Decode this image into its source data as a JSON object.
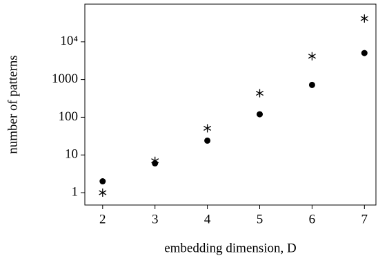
{
  "chart_data": {
    "type": "scatter",
    "xlabel": "embedding dimension, D",
    "ylabel": "number of patterns",
    "x": [
      2,
      3,
      4,
      5,
      6,
      7
    ],
    "series": [
      {
        "color": "#000000",
        "marker": "dot",
        "values": [
          2,
          6,
          24,
          120,
          720,
          5040
        ]
      },
      {
        "color": "#000000",
        "marker": "asterisk",
        "values": [
          1,
          7,
          51,
          433,
          4150,
          41500
        ]
      }
    ],
    "xlim": [
      1.66,
      7.22
    ],
    "xticks": [
      2,
      3,
      4,
      5,
      6,
      7
    ],
    "ylim": [
      0.47,
      100000
    ],
    "yscale": "log",
    "yticks": [
      1,
      10,
      100,
      1000,
      {
        "value": 10000,
        "label": "10⁴"
      }
    ],
    "grid": false
  }
}
